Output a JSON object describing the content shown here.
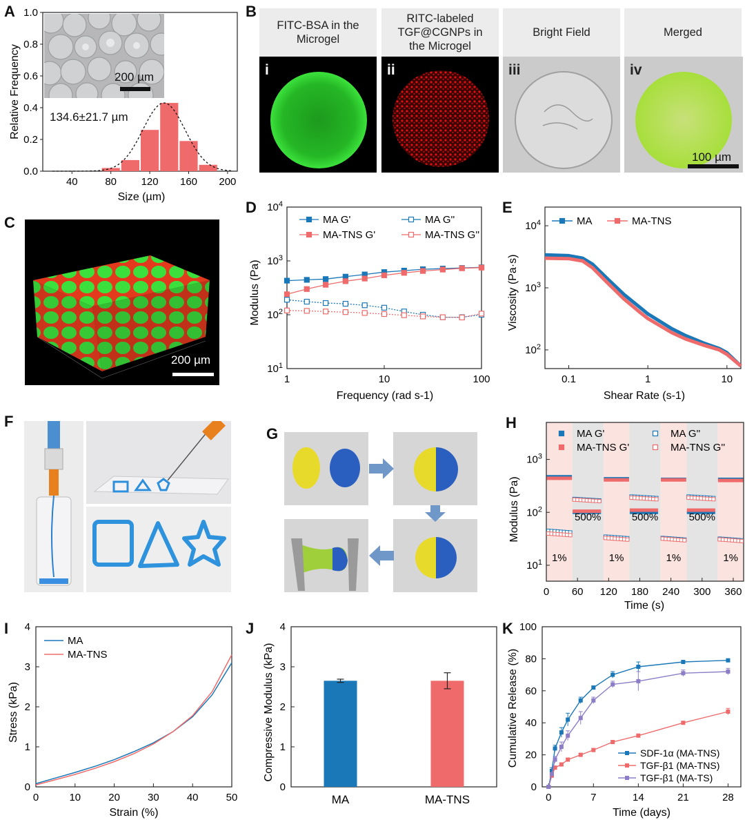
{
  "colors": {
    "blue": "#1a78b8",
    "red": "#ef6b6b",
    "purple": "#8c7dc6",
    "green": "#2bd62b",
    "gray": "#e3e3e3"
  },
  "panels": {
    "A": {
      "letter": "A",
      "inset_scale": "200 µm",
      "annotation": "134.6±21.7 µm",
      "chart_data": {
        "type": "bar",
        "categories": [
          "80",
          "100",
          "120",
          "140",
          "160",
          "180"
        ],
        "x": [
          80,
          100,
          120,
          140,
          160,
          180
        ],
        "values": [
          0.02,
          0.07,
          0.26,
          0.43,
          0.19,
          0.04
        ],
        "xlabel": "Size (µm)",
        "ylabel": "Relative Frequency",
        "xlim": [
          10,
          210
        ],
        "ylim": [
          0,
          1.0
        ],
        "xticks": [
          "40",
          "80",
          "120",
          "160",
          "200"
        ],
        "yticks": [
          "0.0",
          "0.2",
          "0.4",
          "0.6",
          "0.8",
          "1.0"
        ],
        "fit": "gaussian",
        "mean": 134.6,
        "sd": 21.7
      }
    },
    "B": {
      "letter": "B",
      "titles": [
        "FITC-BSA in the Microgel",
        "RITC-labeled TGF@CGNPs in the Microgel",
        "Bright Field",
        "Merged"
      ],
      "title_lines": [
        [
          "FITC-BSA in the",
          "Microgel"
        ],
        [
          "RITC-labeled",
          "TGF@CGNPs in",
          "the Microgel"
        ],
        [
          "Bright Field"
        ],
        [
          "Merged"
        ]
      ],
      "numerals": [
        "i",
        "ii",
        "iii",
        "iv"
      ],
      "scale": "100 µm"
    },
    "C": {
      "letter": "C",
      "scale": "200 µm"
    },
    "D": {
      "letter": "D",
      "chart_data": {
        "type": "line",
        "xscale": "log",
        "yscale": "log",
        "xlabel": "Frequency (rad s-1)",
        "ylabel": "Modulus (Pa)",
        "xlim": [
          1,
          100
        ],
        "ylim": [
          10,
          10000
        ],
        "xticks": [
          "1",
          "10",
          "100"
        ],
        "yticks": [
          "10^1",
          "10^2",
          "10^3",
          "10^4"
        ],
        "series": [
          {
            "name": "MA G'",
            "color": "blue",
            "filled": true,
            "x": [
              1,
              1.6,
              2.5,
              4,
              6.3,
              10,
              16,
              25,
              40,
              63,
              100
            ],
            "values": [
              430,
              445,
              460,
              510,
              560,
              620,
              660,
              700,
              720,
              740,
              760
            ]
          },
          {
            "name": "MA-TNS G'",
            "color": "red",
            "filled": true,
            "x": [
              1,
              1.6,
              2.5,
              4,
              6.3,
              10,
              16,
              25,
              40,
              63,
              100
            ],
            "values": [
              240,
              300,
              360,
              420,
              470,
              540,
              600,
              650,
              690,
              730,
              750
            ]
          },
          {
            "name": "MA G''",
            "color": "blue",
            "filled": false,
            "x": [
              1,
              1.6,
              2.5,
              4,
              6.3,
              10,
              16,
              25,
              40,
              63,
              100
            ],
            "values": [
              190,
              175,
              165,
              160,
              150,
              135,
              115,
              100,
              90,
              90,
              100
            ]
          },
          {
            "name": "MA-TNS G''",
            "color": "red",
            "filled": false,
            "x": [
              1,
              1.6,
              2.5,
              4,
              6.3,
              10,
              16,
              25,
              40,
              63,
              100
            ],
            "values": [
              120,
              118,
              115,
              112,
              108,
              103,
              98,
              93,
              90,
              89,
              105
            ]
          }
        ]
      }
    },
    "E": {
      "letter": "E",
      "chart_data": {
        "type": "line",
        "xscale": "log",
        "yscale": "log",
        "xlabel": "Shear Rate (s-1)",
        "ylabel": "Viscosity (Pa·s)",
        "xlim": [
          0.05,
          15
        ],
        "ylim": [
          50,
          20000
        ],
        "xticks": [
          "0.1",
          "1",
          "10"
        ],
        "yticks": [
          "10^2",
          "10^3",
          "10^4"
        ],
        "series": [
          {
            "name": "MA",
            "color": "blue",
            "x": [
              0.05,
              0.1,
              0.15,
              0.2,
              0.3,
              0.5,
              0.8,
              1,
              2,
              3,
              5,
              8,
              10,
              15
            ],
            "values": [
              3400,
              3300,
              3000,
              2400,
              1450,
              780,
              480,
              380,
              220,
              170,
              130,
              105,
              90,
              55
            ]
          },
          {
            "name": "MA-TNS",
            "color": "red",
            "x": [
              0.05,
              0.1,
              0.15,
              0.2,
              0.3,
              0.5,
              0.8,
              1,
              2,
              3,
              5,
              8,
              10,
              15
            ],
            "values": [
              3000,
              2950,
              2700,
              2100,
              1250,
              660,
              400,
              320,
              190,
              150,
              120,
              100,
              85,
              55
            ]
          }
        ]
      }
    },
    "F": {
      "letter": "F"
    },
    "G": {
      "letter": "G"
    },
    "H": {
      "letter": "H",
      "strain_labels": [
        "1%",
        "500%",
        "1%",
        "500%",
        "1%",
        "500%",
        "1%"
      ],
      "chart_data": {
        "type": "scatter",
        "yscale": "log",
        "xlabel": "Time (s)",
        "ylabel": "Modulus (Pa)",
        "xlim": [
          0,
          380
        ],
        "ylim": [
          5,
          5000
        ],
        "xticks": [
          "0",
          "60",
          "120",
          "180",
          "240",
          "300",
          "360"
        ],
        "yticks": [
          "10^1",
          "10^2",
          "10^3"
        ],
        "intervals": [
          [
            0,
            50,
            "1%"
          ],
          [
            50,
            110,
            "500%"
          ],
          [
            110,
            160,
            "1%"
          ],
          [
            160,
            220,
            "500%"
          ],
          [
            220,
            270,
            "1%"
          ],
          [
            270,
            330,
            "500%"
          ],
          [
            330,
            380,
            "1%"
          ]
        ],
        "series": [
          {
            "name": "MA G'",
            "color": "blue",
            "filled": true,
            "values_by_interval": [
              470,
              100,
              430,
              100,
              420,
              100,
              420
            ]
          },
          {
            "name": "MA-TNS G'",
            "color": "red",
            "filled": true,
            "values_by_interval": [
              440,
              105,
              410,
              110,
              410,
              110,
              400
            ]
          },
          {
            "name": "MA G''",
            "color": "blue",
            "filled": false,
            "values_by_interval": [
              45,
              180,
              35,
              200,
              33,
              200,
              32
            ]
          },
          {
            "name": "MA-TNS G''",
            "color": "red",
            "filled": false,
            "values_by_interval": [
              40,
              175,
              33,
              190,
              32,
              190,
              31
            ]
          }
        ]
      }
    },
    "I": {
      "letter": "I",
      "chart_data": {
        "type": "line",
        "xlabel": "Strain (%)",
        "ylabel": "Stress (kPa)",
        "xlim": [
          0,
          50
        ],
        "ylim": [
          0,
          4
        ],
        "xticks": [
          "0",
          "10",
          "20",
          "30",
          "40",
          "50"
        ],
        "yticks": [
          "0",
          "1",
          "2",
          "3",
          "4"
        ],
        "series": [
          {
            "name": "MA",
            "color": "blue",
            "x": [
              0,
              5,
              10,
              15,
              20,
              25,
              30,
              35,
              40,
              45,
              50
            ],
            "values": [
              0.08,
              0.22,
              0.36,
              0.51,
              0.68,
              0.88,
              1.1,
              1.38,
              1.75,
              2.3,
              3.1
            ]
          },
          {
            "name": "MA-TNS",
            "color": "red",
            "x": [
              0,
              5,
              10,
              15,
              20,
              25,
              30,
              35,
              40,
              45,
              50
            ],
            "values": [
              0.05,
              0.18,
              0.31,
              0.46,
              0.63,
              0.83,
              1.07,
              1.38,
              1.78,
              2.38,
              3.3
            ]
          }
        ]
      }
    },
    "J": {
      "letter": "J",
      "chart_data": {
        "type": "bar",
        "categories": [
          "MA",
          "MA-TNS"
        ],
        "values": [
          2.65,
          2.65
        ],
        "errors": [
          0.04,
          0.2
        ],
        "colors": [
          "blue",
          "red"
        ],
        "ylabel": "Compressive Modulus (kPa)",
        "ylim": [
          0,
          4
        ],
        "yticks": [
          "0",
          "1",
          "2",
          "3",
          "4"
        ]
      }
    },
    "K": {
      "letter": "K",
      "chart_data": {
        "type": "line",
        "xlabel": "Time (days)",
        "ylabel": "Cumulative Release (%)",
        "xlim": [
          -1,
          30
        ],
        "ylim": [
          0,
          100
        ],
        "xticks": [
          "0",
          "7",
          "14",
          "21",
          "28"
        ],
        "yticks": [
          "0",
          "20",
          "40",
          "60",
          "80",
          "100"
        ],
        "series": [
          {
            "name": "SDF-1α (MA-TNS)",
            "color": "blue",
            "x": [
              0,
              0.5,
              1,
              2,
              3,
              5,
              7,
              10,
              14,
              21,
              28
            ],
            "values": [
              0,
              10,
              24,
              34,
              42,
              54,
              62,
              70,
              75,
              78,
              79
            ],
            "errors": [
              0,
              2,
              2,
              3,
              4,
              2,
              1,
              2,
              3,
              1,
              1
            ]
          },
          {
            "name": "TGF-β1 (MA-TNS)",
            "color": "red",
            "x": [
              0,
              0.5,
              1,
              2,
              3,
              5,
              7,
              10,
              14,
              21,
              28
            ],
            "values": [
              0,
              7,
              12,
              14,
              17,
              20,
              23,
              28,
              32,
              40,
              47
            ],
            "errors": [
              0,
              1,
              1,
              1,
              1,
              1,
              1,
              1,
              1,
              1,
              2
            ]
          },
          {
            "name": "TGF-β1 (MA-TS)",
            "color": "purple",
            "x": [
              0,
              0.5,
              1,
              2,
              3,
              5,
              7,
              10,
              14,
              21,
              28
            ],
            "values": [
              0,
              8,
              17,
              25,
              32,
              43,
              54,
              64,
              66,
              71,
              72
            ],
            "errors": [
              0,
              1,
              2,
              3,
              3,
              4,
              2,
              2,
              6,
              2,
              2
            ]
          }
        ]
      }
    }
  }
}
